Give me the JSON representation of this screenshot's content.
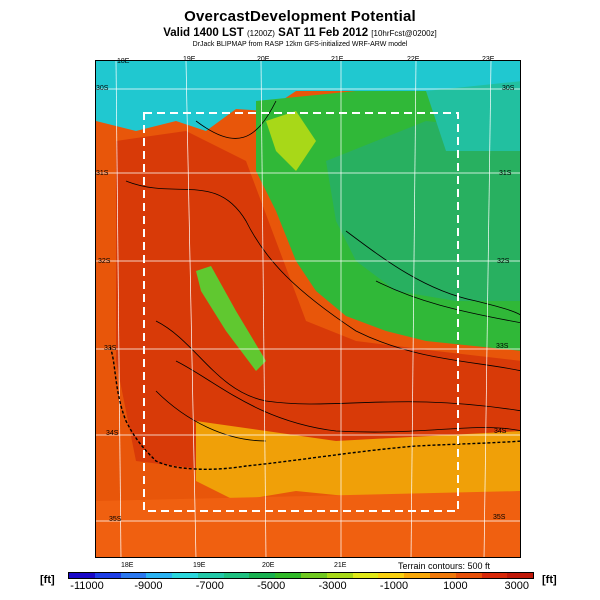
{
  "header": {
    "title": "OvercastDevelopment Potential",
    "subtitle_main": "Valid 1400 LST",
    "subtitle_small": "(1200Z)",
    "subtitle_date": "SAT 11 Feb 2012",
    "subtitle_forecast": "[10hrFcst@0200z]",
    "credit": "DrJack BLIPMAP from RASP 12km GFS-initialized WRF-ARW model"
  },
  "map": {
    "lon_labels_top": [
      "18E",
      "19E",
      "20E",
      "21E",
      "22E",
      "23E"
    ],
    "lon_labels_bottom": [
      "18E",
      "19E",
      "20E",
      "21E"
    ],
    "lat_labels_left": [
      "30S",
      "31S",
      "32S",
      "33S",
      "34S",
      "35S"
    ],
    "lat_labels_right": [
      "30S",
      "31S",
      "32S",
      "33S",
      "34S",
      "35S"
    ],
    "terrain_note": "Terrain contours: 500 ft"
  },
  "legend": {
    "unit_left": "[ft]",
    "unit_right": "[ft]",
    "ticks": [
      "-11000",
      "-9000",
      "-7000",
      "-5000",
      "-3000",
      "-1000",
      "1000",
      "3000"
    ],
    "colors": [
      "#1a08c8",
      "#1e3ee6",
      "#2a78f0",
      "#2ab2f2",
      "#2ad6dc",
      "#22c8a8",
      "#1ec080",
      "#18b050",
      "#30b828",
      "#70c820",
      "#a8d818",
      "#e0e818",
      "#f8d010",
      "#f8a808",
      "#f07808",
      "#e85008",
      "#d82808",
      "#c01808"
    ]
  }
}
